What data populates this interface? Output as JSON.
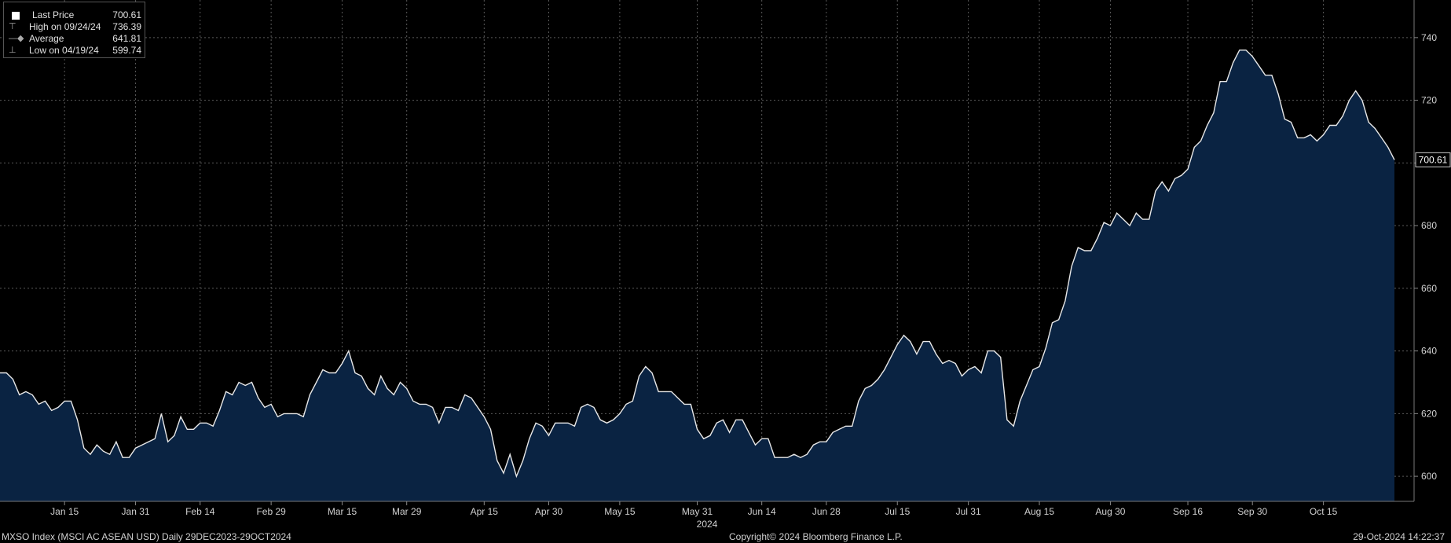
{
  "legend": {
    "last": {
      "label": "Last Price",
      "value": "700.61"
    },
    "high": {
      "label": "High on 09/24/24",
      "value": "736.39"
    },
    "avg": {
      "label": "Average",
      "value": "641.81"
    },
    "low": {
      "label": "Low on 04/19/24",
      "value": "599.74"
    }
  },
  "footer": {
    "left": "MXSO Index (MSCI AC ASEAN USD)  Daily 29DEC2023-29OCT2024",
    "center": "Copyright© 2024 Bloomberg Finance L.P.",
    "right": "29-Oct-2024 14:22:37"
  },
  "colors": {
    "background": "#000000",
    "area_fill": "#0a2342",
    "line": "#e8e8e8",
    "grid": "#5a5a5a"
  },
  "chart_data": {
    "type": "area",
    "title": "",
    "xlabel": "2024",
    "ylabel": "",
    "ylim": [
      592,
      752
    ],
    "y_ticks": [
      600,
      620,
      640,
      660,
      680,
      700,
      720,
      740
    ],
    "x_tick_labels": [
      "Jan 15",
      "Jan 31",
      "Feb 14",
      "Feb 29",
      "Mar 15",
      "Mar 29",
      "Apr 15",
      "Apr 30",
      "May 15",
      "May 31",
      "Jun 14",
      "Jun 28",
      "Jul 15",
      "Jul 31",
      "Aug 15",
      "Aug 30",
      "Sep 16",
      "Sep 30",
      "Oct 15"
    ],
    "x_tick_index": [
      10,
      21,
      31,
      42,
      53,
      63,
      75,
      85,
      96,
      108,
      118,
      128,
      139,
      150,
      161,
      172,
      184,
      194,
      205
    ],
    "grid": true,
    "last_value_label": "700.61",
    "series": [
      {
        "name": "Last Price",
        "values": [
          633,
          633,
          631,
          626,
          627,
          626,
          623,
          624,
          621,
          622,
          624,
          624,
          618,
          609,
          607,
          610,
          608,
          607,
          611,
          606,
          606,
          609,
          610,
          611,
          612,
          620,
          611,
          613,
          619,
          615,
          615,
          617,
          617,
          616,
          621,
          627,
          626,
          630,
          629,
          630,
          625,
          622,
          623,
          619,
          620,
          620,
          620,
          619,
          626,
          630,
          634,
          633,
          633,
          636,
          640,
          633,
          632,
          628,
          626,
          632,
          628,
          626,
          630,
          628,
          624,
          623,
          623,
          622,
          617,
          622,
          622,
          621,
          626,
          625,
          622,
          619,
          615,
          605,
          601,
          607,
          600,
          605,
          612,
          617,
          616,
          613,
          617,
          617,
          617,
          616,
          622,
          623,
          622,
          618,
          617,
          618,
          620,
          623,
          624,
          632,
          635,
          633,
          627,
          627,
          627,
          625,
          623,
          623,
          615,
          612,
          613,
          617,
          618,
          614,
          618,
          618,
          614,
          610,
          612,
          612,
          606,
          606,
          606,
          607,
          606,
          607,
          610,
          611,
          611,
          614,
          615,
          616,
          616,
          624,
          628,
          629,
          631,
          634,
          638,
          642,
          645,
          643,
          639,
          643,
          643,
          639,
          636,
          637,
          636,
          632,
          634,
          635,
          633,
          640,
          640,
          638,
          618,
          616,
          624,
          629,
          634,
          635,
          641,
          649,
          650,
          656,
          667,
          673,
          672,
          672,
          676,
          681,
          680,
          684,
          682,
          680,
          684,
          682,
          682,
          691,
          694,
          691,
          695,
          696,
          698,
          705,
          707,
          712,
          716,
          726,
          726,
          732,
          736,
          736,
          734,
          731,
          728,
          728,
          722,
          714,
          713,
          708,
          708,
          709,
          707,
          709,
          712,
          712,
          715,
          720,
          723,
          720,
          713,
          711,
          708,
          705,
          701
        ]
      }
    ]
  }
}
